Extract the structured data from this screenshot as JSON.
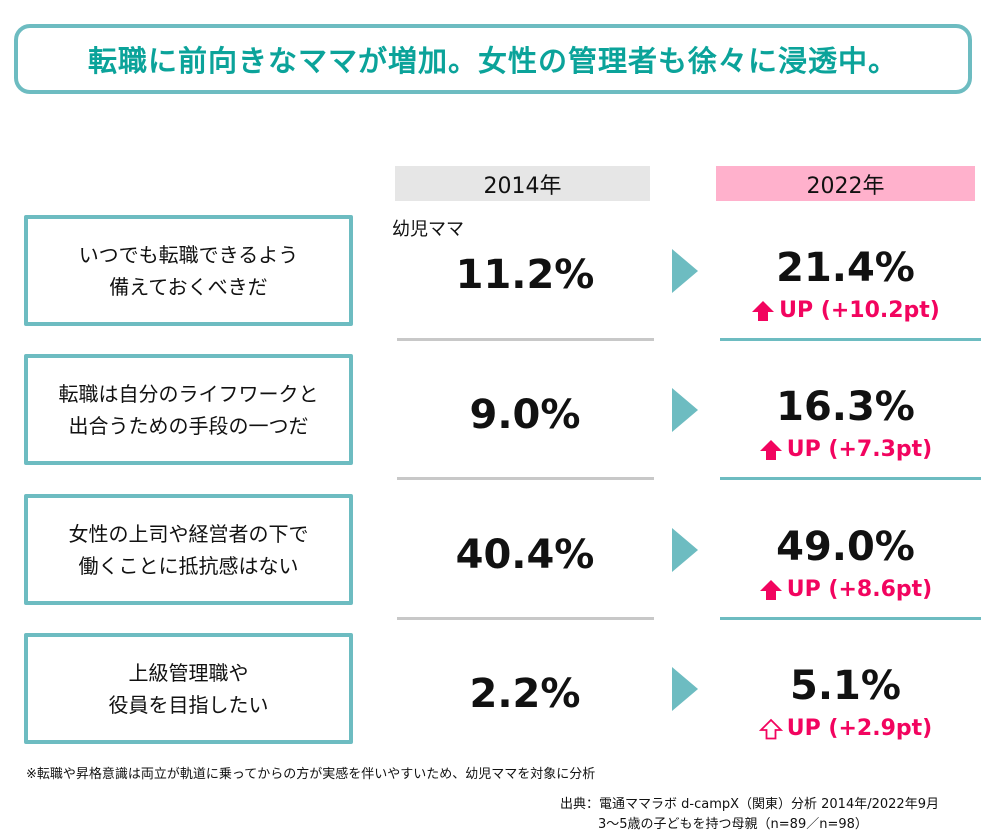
{
  "title": "転職に前向きなママが増加。女性の管理者も徐々に浸透中。",
  "chart_data": {
    "type": "table",
    "columns": [
      "2014年",
      "2022年"
    ],
    "subheader": "幼児ママ",
    "rows": [
      {
        "label_line1": "いつでも転職できるよう",
        "label_line2": "備えておくべきだ",
        "v2014": "11.2%",
        "v2022": "21.4%",
        "change": "UP (+10.2pt)",
        "values": [
          11.2,
          21.4
        ],
        "diff": 10.2,
        "arrow": "filled"
      },
      {
        "label_line1": "転職は自分のライフワークと",
        "label_line2": "出合うための手段の一つだ",
        "v2014": "9.0%",
        "v2022": "16.3%",
        "change": "UP (+7.3pt)",
        "values": [
          9.0,
          16.3
        ],
        "diff": 7.3,
        "arrow": "filled"
      },
      {
        "label_line1": "女性の上司や経営者の下で",
        "label_line2": "働くことに抵抗感はない",
        "v2014": "40.4%",
        "v2022": "49.0%",
        "change": "UP (+8.6pt)",
        "values": [
          40.4,
          49.0
        ],
        "diff": 8.6,
        "arrow": "filled"
      },
      {
        "label_line1": "上級管理職や",
        "label_line2": "役員を目指したい",
        "v2014": "2.2%",
        "v2022": "5.1%",
        "change": "UP (+2.9pt)",
        "values": [
          2.2,
          5.1
        ],
        "diff": 2.9,
        "arrow": "outline"
      }
    ]
  },
  "footnote": "※転職や昇格意識は両立が軌道に乗ってからの方が実感を伴いやすいため、幼児ママを対象に分析",
  "source_line1": "出典：電通ママラボ d-campX（関東）分析 2014年/2022年9月",
  "source_line2": "3〜5歳の子どもを持つ母親（n=89／n=98）",
  "colors": {
    "accent": "#6dbcc1",
    "title": "#0ba39a",
    "up": "#f2045f",
    "header2014": "#e6e6e6",
    "header2022": "#ffb1cc"
  }
}
